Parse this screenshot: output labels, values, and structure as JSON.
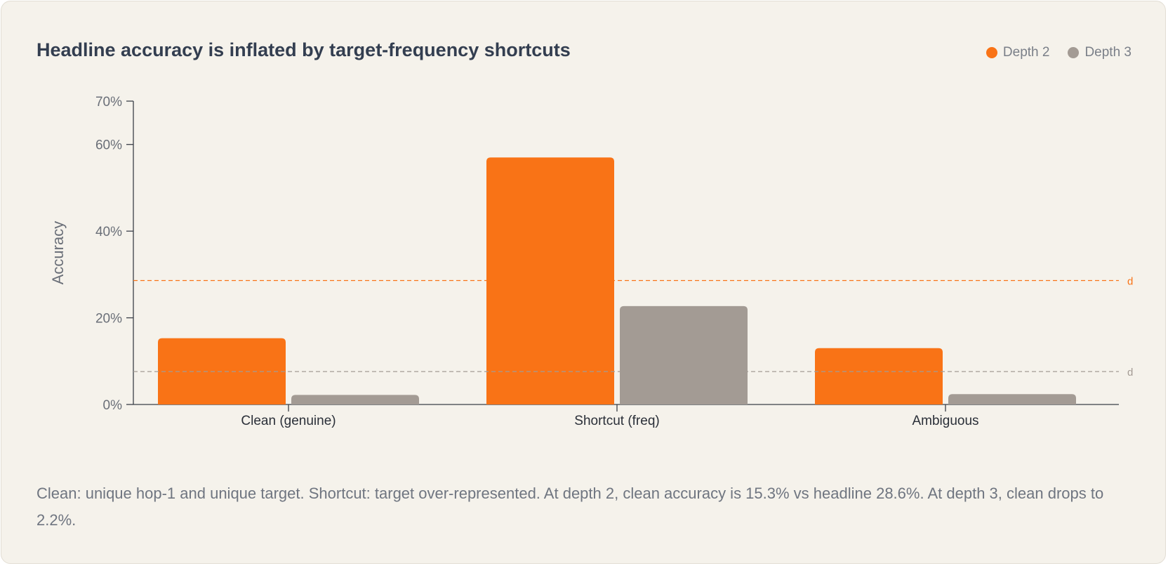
{
  "chart_data": {
    "type": "bar",
    "title": "Headline accuracy is inflated by target-frequency shortcuts",
    "ylabel": "Accuracy",
    "xlabel": "",
    "ylim": [
      0,
      70
    ],
    "yticks": [
      0,
      20,
      40,
      60,
      70
    ],
    "ytick_labels": [
      "0%",
      "20%",
      "40%",
      "60%",
      "70%"
    ],
    "categories": [
      "Clean (genuine)",
      "Shortcut (freq)",
      "Ambiguous"
    ],
    "series": [
      {
        "name": "Depth 2",
        "color": "#f97316",
        "values": [
          15.3,
          57.0,
          13.0
        ]
      },
      {
        "name": "Depth 3",
        "color": "#a39b94",
        "values": [
          2.2,
          22.7,
          2.4
        ]
      }
    ],
    "reference_lines": [
      {
        "series": "Depth 2",
        "value": 28.6,
        "label": "d",
        "color": "#f97316"
      },
      {
        "series": "Depth 3",
        "value": 7.6,
        "label": "d",
        "color": "#a39b94"
      }
    ],
    "legend_position": "top-right",
    "grid": false
  },
  "caption": "Clean: unique hop-1 and unique target. Shortcut: target over-represented. At depth 2, clean accuracy is 15.3% vs headline 28.6%. At depth 3, clean drops to 2.2%."
}
